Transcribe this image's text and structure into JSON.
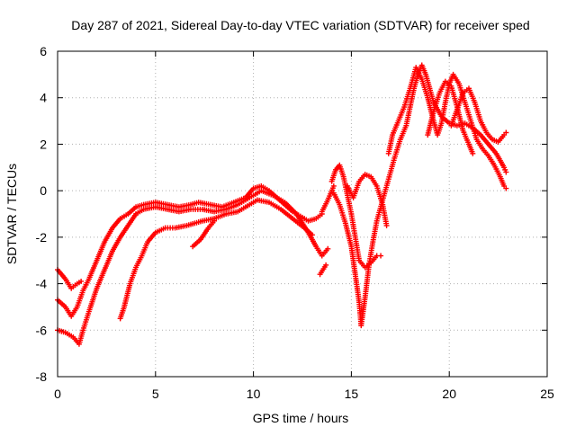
{
  "chart_data": {
    "type": "scatter",
    "title": "Day 287 of 2021, Sidereal Day-to-day VTEC variation (SDTVAR) for receiver sped",
    "xlabel": "GPS time / hours",
    "ylabel": "SDTVAR / TECUs",
    "xlim": [
      0,
      25
    ],
    "ylim": [
      -8,
      6
    ],
    "xticks": [
      "0",
      "5",
      "10",
      "15",
      "20",
      "25"
    ],
    "yticks": [
      "-8",
      "-6",
      "-4",
      "-2",
      "0",
      "2",
      "4",
      "6"
    ],
    "grid": true,
    "legend": "none",
    "marker": "plus",
    "color": "#ff0000",
    "series": [
      {
        "points": [
          [
            0.0,
            -3.4
          ],
          [
            0.4,
            -3.8
          ],
          [
            0.7,
            -4.2
          ],
          [
            1.0,
            -4.0
          ],
          [
            1.2,
            -3.9
          ]
        ]
      },
      {
        "points": [
          [
            0.0,
            -4.7
          ],
          [
            0.4,
            -5.0
          ],
          [
            0.7,
            -5.4
          ],
          [
            1.0,
            -5.0
          ],
          [
            1.3,
            -4.3
          ],
          [
            1.6,
            -3.8
          ],
          [
            2.0,
            -3.0
          ],
          [
            2.4,
            -2.2
          ],
          [
            2.8,
            -1.6
          ],
          [
            3.2,
            -1.2
          ],
          [
            3.6,
            -1.0
          ],
          [
            4.0,
            -0.7
          ],
          [
            4.4,
            -0.6
          ],
          [
            5.0,
            -0.5
          ],
          [
            5.6,
            -0.6
          ],
          [
            6.2,
            -0.7
          ],
          [
            6.8,
            -0.6
          ],
          [
            7.2,
            -0.5
          ],
          [
            7.8,
            -0.6
          ],
          [
            8.4,
            -0.7
          ],
          [
            9.0,
            -0.5
          ],
          [
            9.6,
            -0.3
          ],
          [
            10.0,
            0.1
          ],
          [
            10.4,
            0.2
          ],
          [
            10.8,
            0.0
          ],
          [
            11.2,
            -0.3
          ],
          [
            11.6,
            -0.6
          ],
          [
            12.0,
            -0.9
          ],
          [
            12.4,
            -1.1
          ],
          [
            12.8,
            -1.3
          ],
          [
            13.2,
            -1.2
          ],
          [
            13.5,
            -1.0
          ]
        ]
      },
      {
        "points": [
          [
            0.0,
            -6.0
          ],
          [
            0.4,
            -6.1
          ],
          [
            0.8,
            -6.3
          ],
          [
            1.1,
            -6.6
          ],
          [
            1.3,
            -6.0
          ],
          [
            1.6,
            -5.2
          ],
          [
            2.0,
            -4.2
          ],
          [
            2.4,
            -3.4
          ],
          [
            2.8,
            -2.6
          ],
          [
            3.2,
            -2.0
          ],
          [
            3.6,
            -1.5
          ],
          [
            4.0,
            -1.0
          ],
          [
            4.4,
            -0.8
          ],
          [
            5.0,
            -0.7
          ],
          [
            5.6,
            -0.8
          ],
          [
            6.2,
            -0.9
          ],
          [
            6.8,
            -0.8
          ],
          [
            7.4,
            -0.8
          ],
          [
            8.0,
            -0.9
          ],
          [
            8.6,
            -0.8
          ],
          [
            9.2,
            -0.6
          ],
          [
            9.8,
            -0.3
          ],
          [
            10.4,
            0.0
          ],
          [
            11.0,
            -0.2
          ],
          [
            11.6,
            -0.5
          ],
          [
            12.2,
            -1.0
          ],
          [
            12.8,
            -1.8
          ],
          [
            13.2,
            -2.4
          ],
          [
            13.5,
            -2.8
          ],
          [
            13.8,
            -2.5
          ]
        ]
      },
      {
        "points": [
          [
            3.2,
            -5.5
          ],
          [
            3.4,
            -5.0
          ],
          [
            3.7,
            -4.0
          ],
          [
            4.0,
            -3.3
          ],
          [
            4.3,
            -2.8
          ],
          [
            4.6,
            -2.2
          ],
          [
            5.0,
            -1.8
          ],
          [
            5.5,
            -1.6
          ],
          [
            6.0,
            -1.6
          ],
          [
            6.6,
            -1.5
          ],
          [
            7.0,
            -1.4
          ],
          [
            7.4,
            -1.3
          ],
          [
            8.0,
            -1.2
          ],
          [
            8.6,
            -1.0
          ],
          [
            9.2,
            -0.9
          ],
          [
            9.8,
            -0.6
          ],
          [
            10.2,
            -0.4
          ],
          [
            10.8,
            -0.5
          ],
          [
            11.4,
            -0.8
          ],
          [
            12.0,
            -1.2
          ],
          [
            12.6,
            -1.6
          ],
          [
            13.0,
            -1.9
          ]
        ]
      },
      {
        "points": [
          [
            6.9,
            -2.4
          ],
          [
            7.3,
            -2.1
          ],
          [
            7.7,
            -1.6
          ],
          [
            8.0,
            -1.3
          ]
        ]
      },
      {
        "points": [
          [
            13.4,
            -3.6
          ],
          [
            13.7,
            -3.2
          ]
        ]
      },
      {
        "points": [
          [
            14.1,
            -0.1
          ],
          [
            14.4,
            -0.6
          ],
          [
            14.7,
            -1.4
          ],
          [
            15.0,
            -2.4
          ],
          [
            15.2,
            -3.6
          ],
          [
            15.4,
            -4.8
          ],
          [
            15.5,
            -5.8
          ],
          [
            15.7,
            -4.6
          ],
          [
            15.9,
            -3.2
          ],
          [
            16.1,
            -2.2
          ],
          [
            16.3,
            -1.3
          ],
          [
            16.6,
            -0.4
          ],
          [
            16.9,
            0.5
          ],
          [
            17.2,
            1.4
          ],
          [
            17.5,
            2.2
          ],
          [
            17.8,
            2.8
          ],
          [
            18.0,
            3.6
          ],
          [
            18.2,
            4.4
          ],
          [
            18.4,
            5.0
          ],
          [
            18.6,
            5.4
          ],
          [
            18.8,
            5.0
          ],
          [
            19.0,
            4.4
          ],
          [
            19.2,
            3.8
          ],
          [
            19.6,
            3.2
          ],
          [
            20.0,
            2.9
          ],
          [
            20.4,
            2.8
          ],
          [
            20.8,
            2.9
          ],
          [
            21.2,
            2.7
          ],
          [
            21.6,
            2.4
          ],
          [
            22.0,
            2.0
          ],
          [
            22.4,
            1.6
          ],
          [
            22.8,
            1.0
          ],
          [
            22.9,
            0.8
          ]
        ]
      },
      {
        "points": [
          [
            14.0,
            0.4
          ],
          [
            14.2,
            0.9
          ],
          [
            14.4,
            1.1
          ],
          [
            14.6,
            0.6
          ],
          [
            14.8,
            -0.2
          ],
          [
            15.0,
            -1.0
          ],
          [
            15.2,
            -2.0
          ],
          [
            15.4,
            -3.0
          ],
          [
            15.7,
            -3.3
          ],
          [
            16.0,
            -3.1
          ],
          [
            16.3,
            -2.8
          ],
          [
            16.5,
            -2.8
          ]
        ]
      },
      {
        "points": [
          [
            14.8,
            0.2
          ],
          [
            15.1,
            -0.3
          ],
          [
            15.4,
            0.4
          ],
          [
            15.7,
            0.7
          ],
          [
            16.0,
            0.6
          ],
          [
            16.3,
            0.2
          ],
          [
            16.6,
            -0.6
          ],
          [
            16.8,
            -1.5
          ]
        ]
      },
      {
        "points": [
          [
            16.9,
            1.6
          ],
          [
            17.1,
            2.4
          ],
          [
            17.4,
            3.0
          ],
          [
            17.7,
            3.6
          ],
          [
            18.0,
            4.4
          ],
          [
            18.3,
            5.3
          ],
          [
            18.6,
            4.8
          ],
          [
            18.9,
            4.0
          ],
          [
            19.2,
            3.0
          ],
          [
            19.4,
            2.4
          ],
          [
            19.6,
            2.9
          ],
          [
            19.8,
            3.8
          ],
          [
            20.0,
            4.6
          ],
          [
            20.2,
            5.0
          ],
          [
            20.5,
            4.6
          ],
          [
            20.8,
            3.8
          ],
          [
            21.1,
            3.0
          ],
          [
            21.4,
            2.2
          ],
          [
            21.7,
            1.8
          ],
          [
            22.0,
            1.5
          ],
          [
            22.3,
            1.1
          ],
          [
            22.6,
            0.6
          ],
          [
            22.8,
            0.2
          ],
          [
            22.9,
            0.1
          ]
        ]
      },
      {
        "points": [
          [
            18.9,
            2.4
          ],
          [
            19.2,
            3.4
          ],
          [
            19.5,
            4.2
          ],
          [
            19.8,
            4.7
          ],
          [
            20.1,
            4.5
          ],
          [
            20.4,
            3.6
          ],
          [
            20.7,
            2.6
          ],
          [
            21.0,
            2.0
          ],
          [
            21.2,
            1.6
          ]
        ]
      },
      {
        "points": [
          [
            20.1,
            2.8
          ],
          [
            20.4,
            3.5
          ],
          [
            20.7,
            4.2
          ],
          [
            21.0,
            4.4
          ],
          [
            21.3,
            3.8
          ],
          [
            21.6,
            3.0
          ],
          [
            21.9,
            2.5
          ],
          [
            22.2,
            2.2
          ],
          [
            22.5,
            2.1
          ],
          [
            22.8,
            2.4
          ],
          [
            22.9,
            2.5
          ]
        ]
      },
      {
        "points": [
          [
            13.5,
            -0.9
          ],
          [
            13.8,
            -0.4
          ],
          [
            14.1,
            0.2
          ]
        ]
      }
    ]
  }
}
